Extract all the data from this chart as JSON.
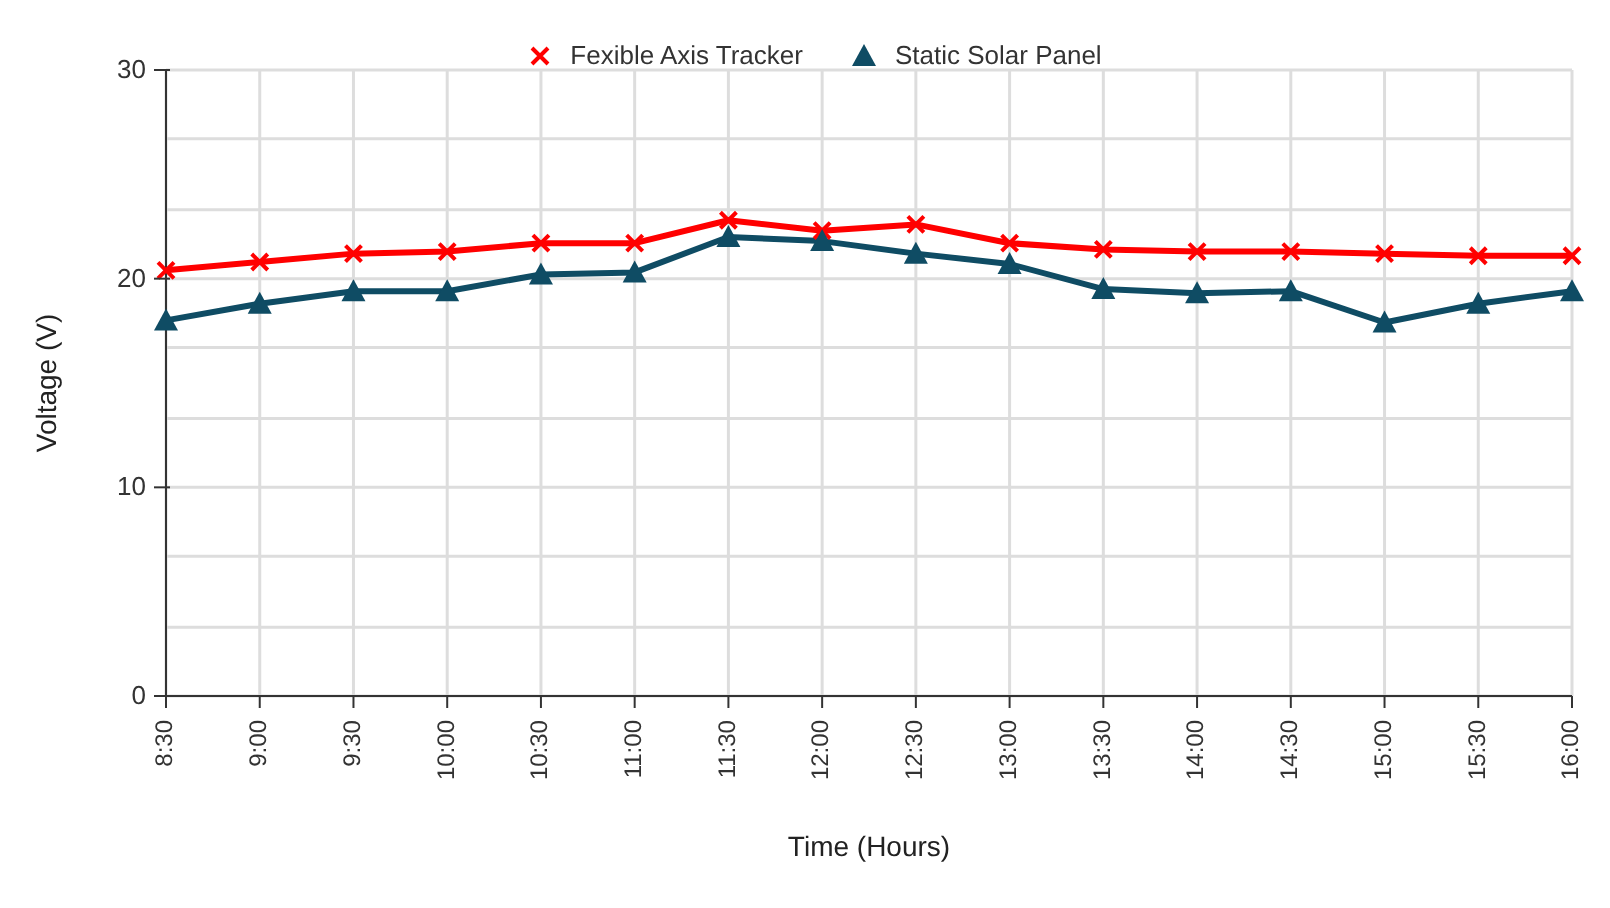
{
  "chart_data": {
    "type": "line",
    "xlabel": "Time (Hours)",
    "ylabel": "Voltage (V)",
    "categories": [
      "8:30",
      "9:00",
      "9:30",
      "10:00",
      "10:30",
      "11:00",
      "11:30",
      "12:00",
      "12:30",
      "13:00",
      "13:30",
      "14:00",
      "14:30",
      "15:00",
      "15:30",
      "16:00"
    ],
    "series": [
      {
        "name": "Fexible Axis Tracker",
        "color": "#ff0000",
        "marker": "cross",
        "values": [
          20.4,
          20.8,
          21.2,
          21.3,
          21.7,
          21.7,
          22.8,
          22.3,
          22.6,
          21.7,
          21.4,
          21.3,
          21.3,
          21.2,
          21.1,
          21.1
        ]
      },
      {
        "name": "Static Solar Panel",
        "color": "#0f4c64",
        "marker": "triangle",
        "values": [
          18.0,
          18.8,
          19.4,
          19.4,
          20.2,
          20.3,
          22.0,
          21.8,
          21.2,
          20.7,
          19.5,
          19.3,
          19.4,
          17.9,
          18.8,
          19.4
        ]
      }
    ],
    "ylim": [
      0,
      30
    ],
    "yticks": [
      0,
      {
        "value": 3.3,
        "label": null
      },
      {
        "value": 6.7,
        "label": null
      },
      10,
      {
        "value": 13.3,
        "label": null
      },
      {
        "value": 16.7,
        "label": null
      },
      20,
      {
        "value": 23.3,
        "label": null
      },
      {
        "value": 26.7,
        "label": null
      },
      30
    ],
    "grid": true,
    "legend": "top"
  }
}
